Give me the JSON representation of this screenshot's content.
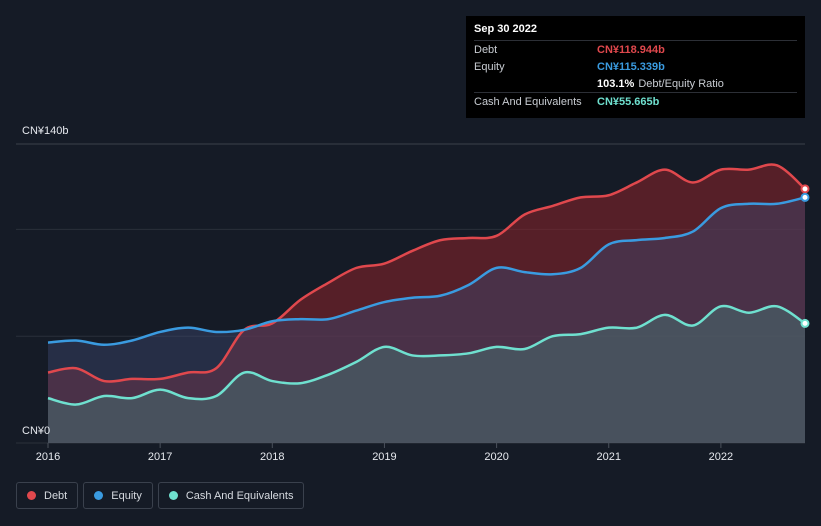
{
  "tooltip": {
    "date": "Sep 30 2022",
    "rows": [
      {
        "label": "Debt",
        "value": "CN¥118.944b",
        "color": "#e0484d"
      },
      {
        "label": "Equity",
        "value": "CN¥115.339b",
        "color": "#3a9be0"
      },
      {
        "label": "",
        "value": "103.1%",
        "extra": "Debt/Equity Ratio",
        "color": "#ffffff"
      },
      {
        "label": "Cash And Equivalents",
        "value": "CN¥55.665b",
        "color": "#6fe0cf"
      }
    ]
  },
  "legend": [
    {
      "label": "Debt",
      "color": "#e0484d"
    },
    {
      "label": "Equity",
      "color": "#3a9be0"
    },
    {
      "label": "Cash And Equivalents",
      "color": "#6fe0cf"
    }
  ],
  "chart_data": {
    "type": "area",
    "ylim": [
      0,
      140
    ],
    "y_tick_labels": [
      "CN¥140b",
      "CN¥0"
    ],
    "x_tick_labels": [
      "2016",
      "2017",
      "2018",
      "2019",
      "2020",
      "2021",
      "2022"
    ],
    "x_ticks": [
      2016,
      2017,
      2018,
      2019,
      2020,
      2021,
      2022
    ],
    "grid": true,
    "legend_position": "bottom-left",
    "series": [
      {
        "name": "Debt",
        "color": "#e0484d",
        "fill": "rgba(140,35,42,0.55)",
        "x": [
          2016.0,
          2016.25,
          2016.5,
          2016.75,
          2017.0,
          2017.25,
          2017.5,
          2017.75,
          2018.0,
          2018.25,
          2018.5,
          2018.75,
          2019.0,
          2019.25,
          2019.5,
          2019.75,
          2020.0,
          2020.25,
          2020.5,
          2020.75,
          2021.0,
          2021.25,
          2021.5,
          2021.75,
          2022.0,
          2022.25,
          2022.5,
          2022.75
        ],
        "values": [
          33,
          35,
          29,
          30,
          30,
          33,
          35,
          53,
          56,
          67,
          75,
          82,
          84,
          90,
          95,
          96,
          97,
          107,
          111,
          115,
          116,
          122,
          128,
          122,
          128,
          128,
          130,
          119
        ]
      },
      {
        "name": "Equity",
        "color": "#3a9be0",
        "fill": "rgba(60,70,110,0.45)",
        "x": [
          2016.0,
          2016.25,
          2016.5,
          2016.75,
          2017.0,
          2017.25,
          2017.5,
          2017.75,
          2018.0,
          2018.25,
          2018.5,
          2018.75,
          2019.0,
          2019.25,
          2019.5,
          2019.75,
          2020.0,
          2020.25,
          2020.5,
          2020.75,
          2021.0,
          2021.25,
          2021.5,
          2021.75,
          2022.0,
          2022.25,
          2022.5,
          2022.75
        ],
        "values": [
          47,
          48,
          46,
          48,
          52,
          54,
          52,
          53,
          57,
          58,
          58,
          62,
          66,
          68,
          69,
          74,
          82,
          80,
          79,
          82,
          93,
          95,
          96,
          99,
          110,
          112,
          112,
          115
        ]
      },
      {
        "name": "Cash And Equivalents",
        "color": "#6fe0cf",
        "fill": "rgba(70,130,125,0.40)",
        "x": [
          2016.0,
          2016.25,
          2016.5,
          2016.75,
          2017.0,
          2017.25,
          2017.5,
          2017.75,
          2018.0,
          2018.25,
          2018.5,
          2018.75,
          2019.0,
          2019.25,
          2019.5,
          2019.75,
          2020.0,
          2020.25,
          2020.5,
          2020.75,
          2021.0,
          2021.25,
          2021.5,
          2021.75,
          2022.0,
          2022.25,
          2022.5,
          2022.75
        ],
        "values": [
          21,
          18,
          22,
          21,
          25,
          21,
          22,
          33,
          29,
          28,
          32,
          38,
          45,
          41,
          41,
          42,
          45,
          44,
          50,
          51,
          54,
          54,
          60,
          55,
          64,
          61,
          64,
          56
        ]
      }
    ]
  }
}
